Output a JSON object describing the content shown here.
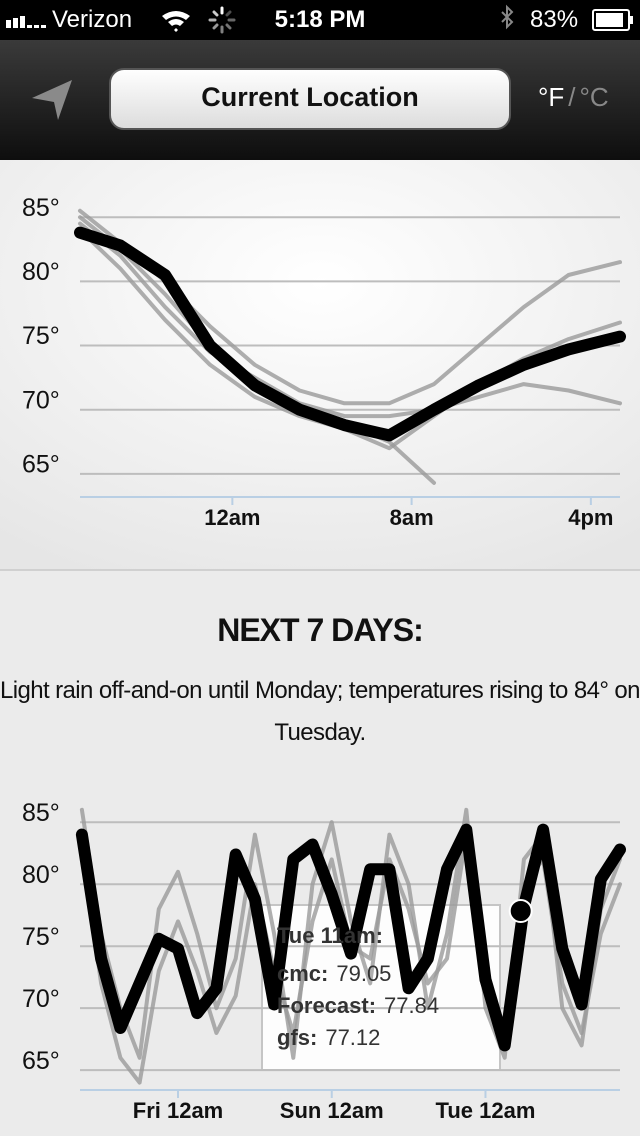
{
  "status_bar": {
    "carrier": "Verizon",
    "time": "5:18 PM",
    "battery": "83%"
  },
  "nav": {
    "location_button": "Current Location",
    "unit_f": "°F",
    "separator": "/",
    "unit_c": "°C"
  },
  "forecast": {
    "heading": "NEXT 7 DAYS:",
    "summary": "Light rain off-and-on until Monday; temperatures rising to 84° on Tuesday."
  },
  "chart_data": [
    {
      "type": "line",
      "x": [
        -6.8,
        -5,
        -3,
        -1,
        1,
        3,
        5,
        7,
        9,
        11,
        13,
        15,
        17.3
      ],
      "series": [
        {
          "color": "#9a9a9a",
          "values": [
            85.5,
            83,
            80,
            76.5,
            73.5,
            71.5,
            70.5,
            70.5,
            72,
            75,
            78,
            80.5,
            81.5
          ]
        },
        {
          "color": "#9a9a9a",
          "values": [
            85,
            82.5,
            79,
            75,
            72,
            70,
            69,
            67.5,
            64.3,
            null,
            null,
            null,
            null
          ]
        },
        {
          "color": "#9a9a9a",
          "values": [
            84.5,
            82,
            78,
            74.5,
            72.5,
            70.5,
            69.5,
            69.5,
            70,
            71,
            72,
            71.5,
            70.5
          ]
        },
        {
          "color": "#9a9a9a",
          "values": [
            84,
            81,
            77,
            73.5,
            71,
            69.5,
            68.5,
            67,
            69.5,
            72,
            74,
            75.5,
            76.8
          ]
        },
        {
          "color": "#000000",
          "values": [
            83.8,
            82.8,
            80.5,
            75,
            71.9,
            70,
            68.8,
            68,
            70,
            71.9,
            73.5,
            74.7,
            75.7
          ]
        }
      ],
      "xlim": [
        -6.8,
        17.3
      ],
      "ylim": [
        63.2,
        87.9
      ],
      "xticks": [
        {
          "value": 0,
          "label": "12am"
        },
        {
          "value": 8,
          "label": "8am"
        },
        {
          "value": 16,
          "label": "4pm"
        }
      ],
      "yticks": [
        {
          "value": 65,
          "label": "65°"
        },
        {
          "value": 70,
          "label": "70°"
        },
        {
          "value": 75,
          "label": "75°"
        },
        {
          "value": 80,
          "label": "80°"
        },
        {
          "value": 85,
          "label": "85°"
        }
      ],
      "grid": true
    },
    {
      "type": "line",
      "x": [
        -30,
        -24,
        -18,
        -12,
        -6,
        0,
        6,
        12,
        18,
        24,
        30,
        36,
        42,
        48,
        54,
        60,
        66,
        72,
        78,
        84,
        90,
        96,
        102,
        108,
        114,
        120,
        126,
        132,
        138
      ],
      "series": [
        {
          "color": "#9a9a9a",
          "values": [
            86,
            76,
            70,
            66,
            78,
            81,
            76,
            70,
            74,
            84,
            76,
            66,
            80,
            85,
            77,
            72,
            84,
            80,
            70,
            76,
            86,
            70,
            66,
            82,
            84,
            70,
            67,
            78,
            82
          ]
        },
        {
          "color": "#9a9a9a",
          "values": [
            83,
            72,
            66,
            64,
            73,
            77,
            73,
            68,
            71,
            80,
            73,
            68,
            77,
            82,
            75,
            74,
            82,
            78,
            72,
            74,
            84,
            72,
            68,
            80,
            82,
            72,
            68,
            76,
            80
          ]
        },
        {
          "color": "#000000",
          "values": [
            84,
            74,
            68.4,
            72,
            75.6,
            74.8,
            69.6,
            71.6,
            82.4,
            78.8,
            70.3,
            82,
            83.2,
            79.2,
            74.4,
            81.2,
            81.2,
            71.6,
            74,
            81.2,
            84.4,
            72.3,
            67,
            78.2,
            84.4,
            74.8,
            70.3,
            80.4,
            82.8
          ]
        }
      ],
      "xlim": [
        -30.6,
        138
      ],
      "ylim": [
        63.4,
        87.6
      ],
      "xticks": [
        {
          "value": 0,
          "label": "Fri 12am"
        },
        {
          "value": 48,
          "label": "Sun 12am"
        },
        {
          "value": 96,
          "label": "Tue 12am"
        }
      ],
      "yticks": [
        {
          "value": 65,
          "label": "65°"
        },
        {
          "value": 70,
          "label": "70°"
        },
        {
          "value": 75,
          "label": "75°"
        },
        {
          "value": 80,
          "label": "80°"
        },
        {
          "value": 85,
          "label": "85°"
        }
      ],
      "grid": true,
      "tooltip": {
        "title": "Tue 11am:",
        "x": 107,
        "rows": [
          {
            "name": "cmc:",
            "value": 79.05
          },
          {
            "name": "Forecast:",
            "value": 77.84
          },
          {
            "name": "gfs:",
            "value": 77.12
          }
        ]
      }
    }
  ]
}
